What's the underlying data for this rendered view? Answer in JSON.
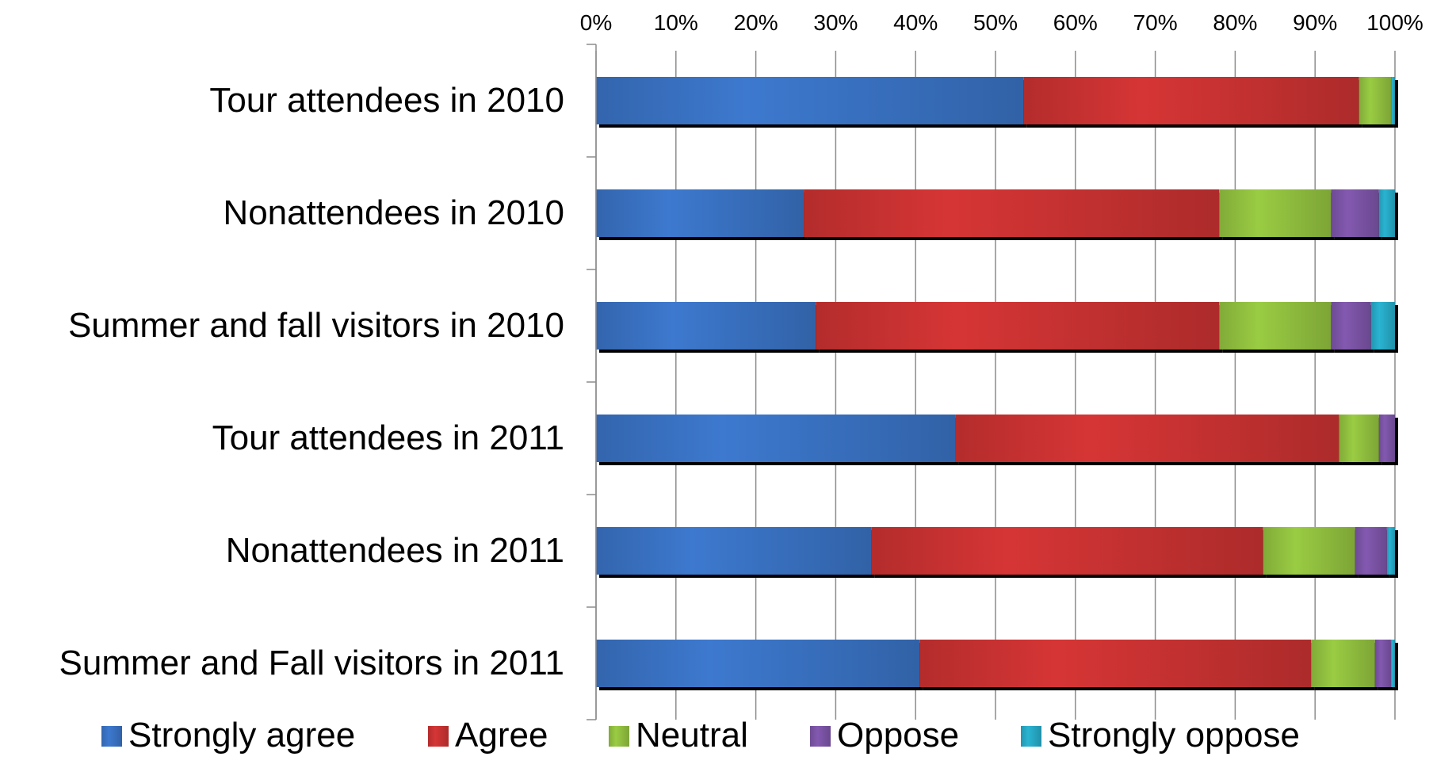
{
  "chart_data": {
    "type": "bar",
    "orientation": "horizontal",
    "stacked": true,
    "percent": true,
    "title": "",
    "xlabel": "",
    "ylabel": "",
    "xlim": [
      0,
      100
    ],
    "x_ticks": [
      "0%",
      "10%",
      "20%",
      "30%",
      "40%",
      "50%",
      "60%",
      "70%",
      "80%",
      "90%",
      "100%"
    ],
    "x_axis_position": "top",
    "grid": true,
    "legend_position": "bottom",
    "categories": [
      "Tour attendees in 2010",
      "Nonattendees in 2010",
      "Summer and fall visitors in 2010",
      "Tour attendees in 2011",
      "Nonattendees in 2011",
      "Summer and Fall visitors in 2011"
    ],
    "series": [
      {
        "name": "Strongly agree",
        "color": "#3a73c5",
        "values": [
          53.5,
          26,
          27.5,
          45,
          34.5,
          40.5
        ]
      },
      {
        "name": "Agree",
        "color": "#cc3232",
        "values": [
          42,
          52,
          50.5,
          48,
          49,
          49
        ]
      },
      {
        "name": "Neutral",
        "color": "#93c240",
        "values": [
          4,
          14,
          14,
          5,
          11.5,
          8
        ]
      },
      {
        "name": "Oppose",
        "color": "#7d55a8",
        "values": [
          0,
          6,
          5,
          2,
          4,
          2
        ]
      },
      {
        "name": "Strongly oppose",
        "color": "#27abc8",
        "values": [
          0.5,
          2,
          3,
          0,
          1,
          0.5
        ]
      }
    ]
  }
}
